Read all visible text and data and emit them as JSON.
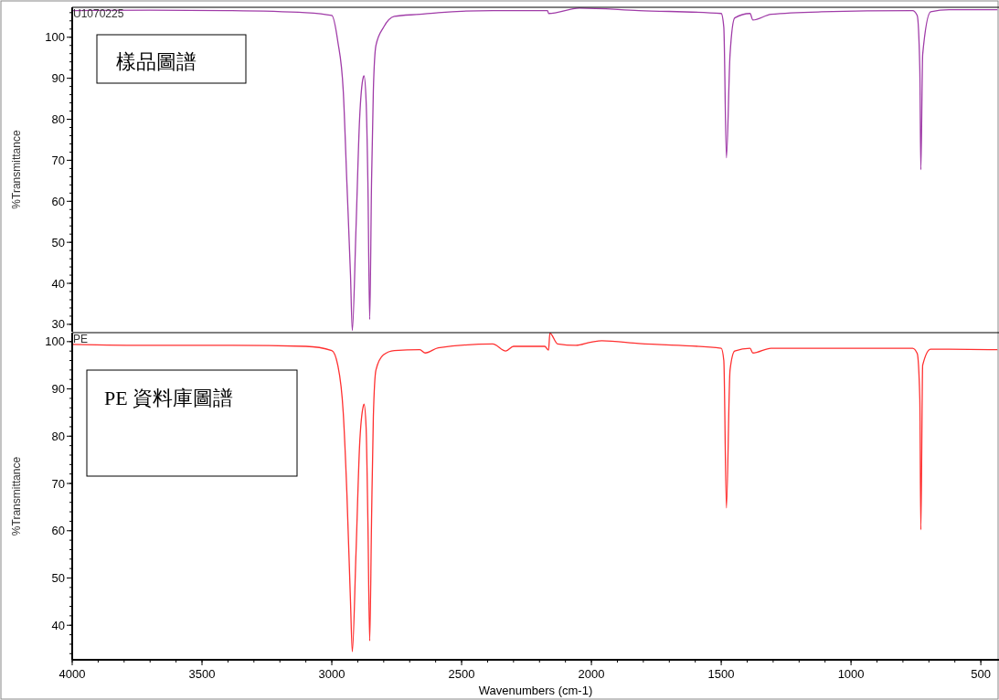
{
  "chart_data": [
    {
      "type": "line",
      "ylabel": "%Transmittance",
      "xlim": [
        4000,
        430
      ],
      "ylim": [
        28.2,
        107.3
      ],
      "yticks": [
        30,
        40,
        50,
        60,
        70,
        80,
        90,
        100
      ],
      "tick_labels": "y",
      "annotations": [
        "U1070225",
        "樣品圖譜"
      ],
      "series": [
        {
          "color": "#a03ca8",
          "x": [
            4000,
            3700,
            3400,
            3100,
            3000,
            2977,
            2956,
            2942,
            2928,
            2921,
            2907,
            2893,
            2879,
            2876,
            2868,
            2861,
            2854,
            2847,
            2840,
            2830,
            2801,
            2759,
            2661,
            2590,
            2380,
            2169,
            2165,
            2046,
            1817,
            1500,
            1490,
            1480,
            1466,
            1448,
            1389,
            1378,
            1308,
            1114,
            763,
            745,
            735,
            731,
            724,
            693,
            622,
            436
          ],
          "values": [
            106.5,
            106.6,
            106.5,
            106.0,
            105.3,
            99,
            87,
            64.6,
            42,
            28.5,
            53,
            80,
            90.2,
            90.6,
            84.6,
            64.6,
            31.2,
            64.6,
            86.9,
            98,
            102.4,
            105.1,
            105.6,
            106,
            106.5,
            106.5,
            105.8,
            107.1,
            106.5,
            105.8,
            102.4,
            70.6,
            95.8,
            104.7,
            105.8,
            104.2,
            105.6,
            106.2,
            106.5,
            105.3,
            92.4,
            67.7,
            95.8,
            106.2,
            106.7,
            106.7
          ]
        }
      ]
    },
    {
      "type": "line",
      "ylabel": "%Transmittance",
      "xlabel": "Wavenumbers (cm-1)",
      "xlim": [
        4000,
        430
      ],
      "ylim": [
        32.7,
        101.9
      ],
      "xticks": [
        4000,
        3500,
        3000,
        2500,
        2000,
        1500,
        1000,
        500
      ],
      "yticks": [
        40,
        50,
        60,
        70,
        80,
        90,
        100
      ],
      "annotations": [
        "PE",
        "PE 資料庫圖譜"
      ],
      "series": [
        {
          "color": "#ff3030",
          "x": [
            4000,
            3700,
            3400,
            3100,
            3000,
            2977,
            2956,
            2942,
            2928,
            2921,
            2907,
            2893,
            2879,
            2876,
            2868,
            2861,
            2854,
            2847,
            2840,
            2830,
            2801,
            2759,
            2661,
            2640,
            2590,
            2380,
            2330,
            2300,
            2180,
            2165,
            2160,
            2130,
            2060,
            2000,
            1960,
            1817,
            1500,
            1490,
            1480,
            1466,
            1448,
            1389,
            1378,
            1308,
            1114,
            763,
            745,
            735,
            731,
            724,
            693,
            622,
            436
          ],
          "values": [
            99.4,
            99.2,
            99.2,
            99.0,
            98.1,
            95,
            85,
            68,
            45,
            34.4,
            55,
            78,
            86.3,
            86.8,
            82,
            62,
            36.7,
            62,
            84,
            94,
            97.2,
            98.1,
            98.3,
            97.6,
            98.7,
            99.5,
            98.0,
            99.0,
            99.0,
            98.2,
            101.8,
            99.5,
            99.2,
            99.9,
            100.2,
            99.6,
            98.6,
            96,
            64.8,
            94,
            98,
            98.6,
            97.6,
            98.6,
            98.6,
            98.6,
            97.5,
            88,
            60.2,
            95,
            98.4,
            98.4,
            98.3
          ]
        }
      ]
    }
  ]
}
